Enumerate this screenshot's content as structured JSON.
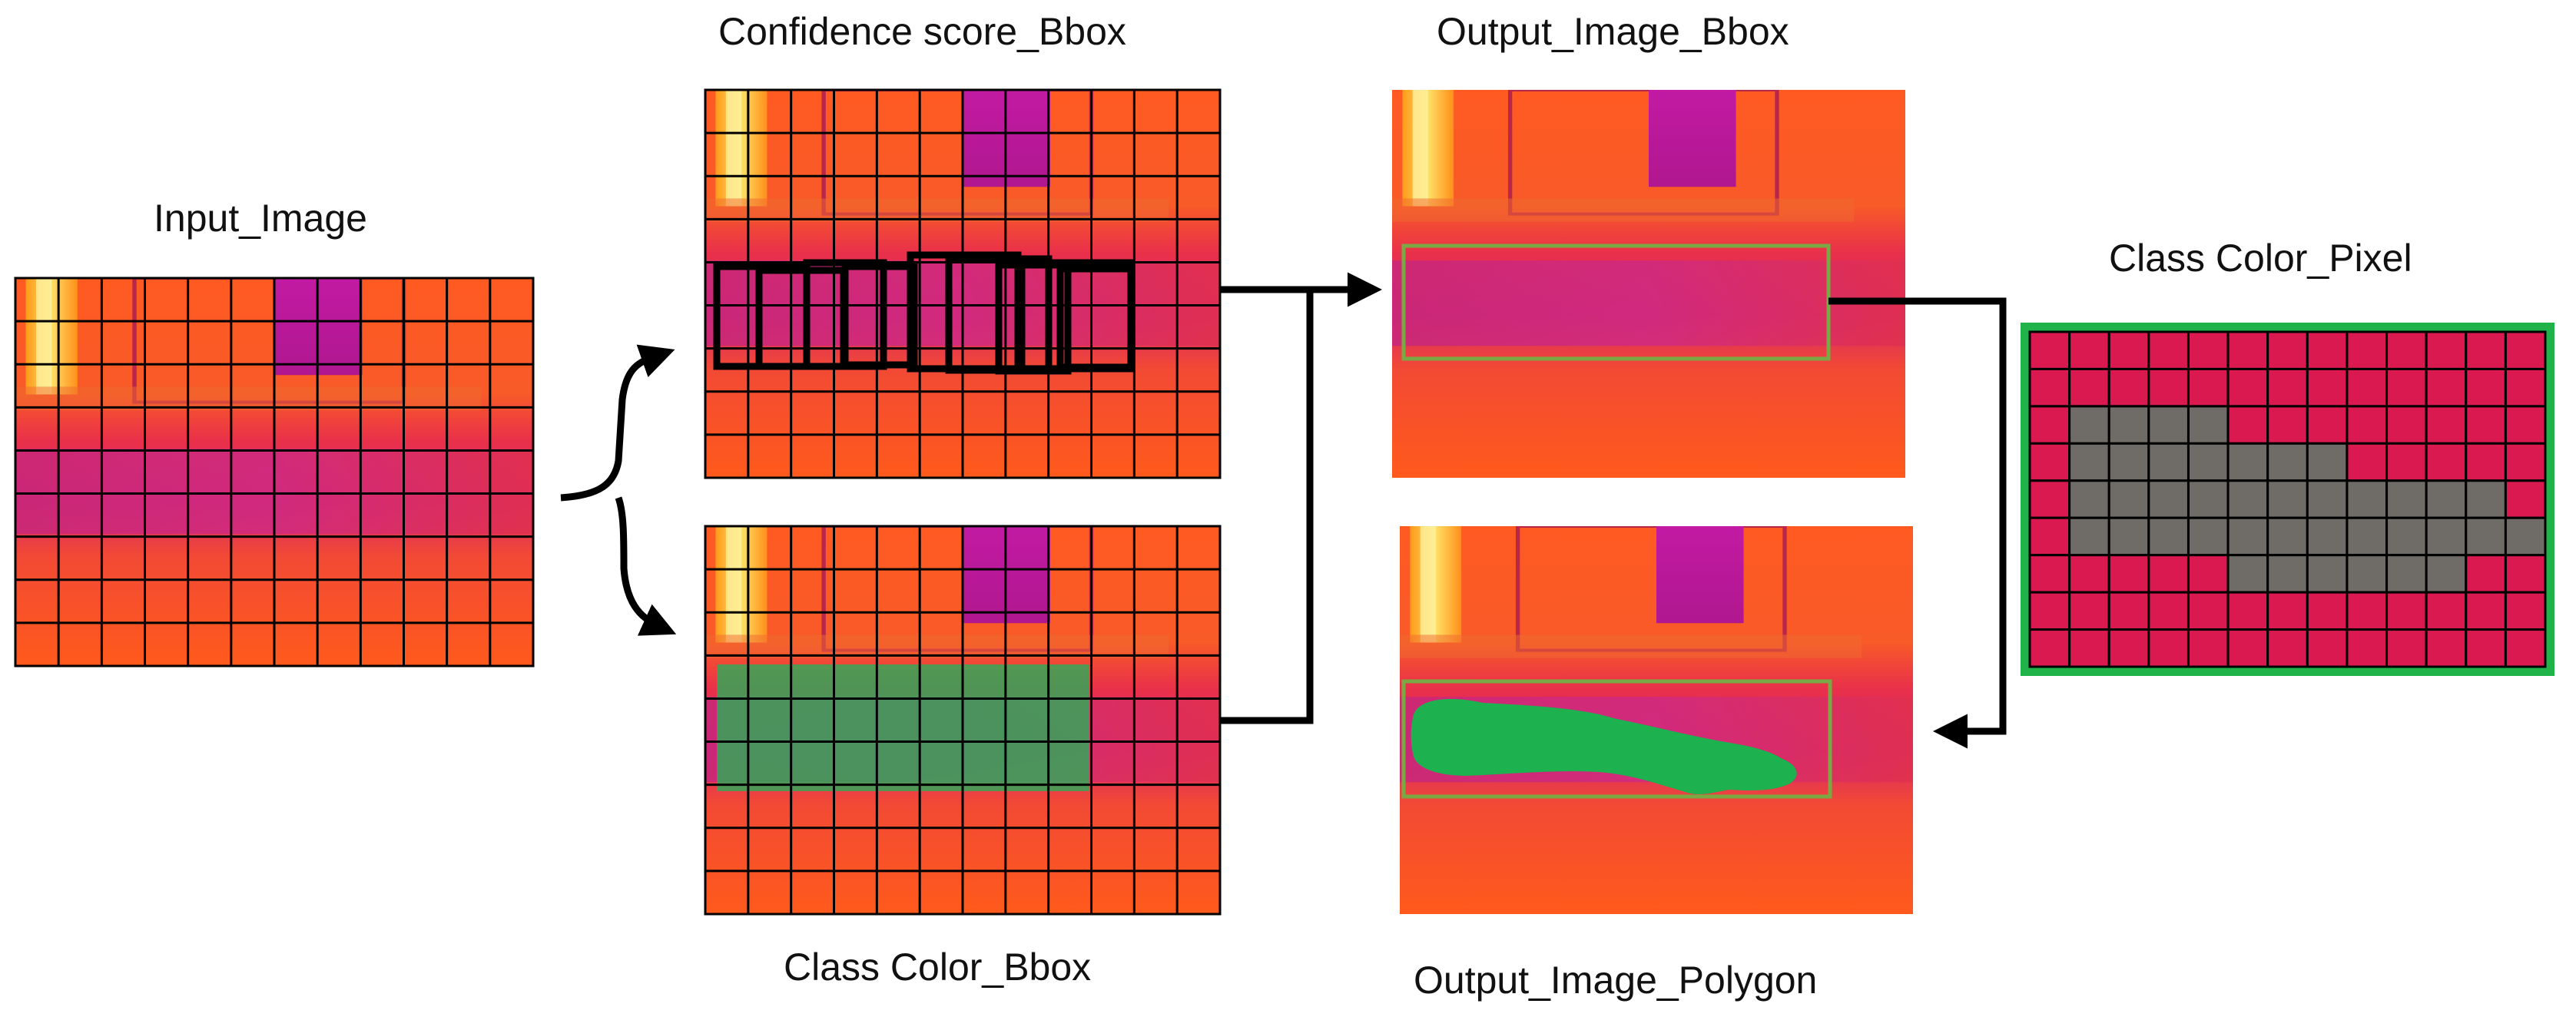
{
  "labels": {
    "input": "Input_Image",
    "confidence": "Confidence score_Bbox",
    "class_bbox": "Class Color_Bbox",
    "output_bbox": "Output_Image_Bbox",
    "output_polygon": "Output_Image_Polygon",
    "class_pixel": "Class Color_Pixel"
  },
  "colors": {
    "grid_line": "#000000",
    "class_green": "#2eaa58",
    "mask_green": "#1db14f",
    "pixel_red": "#d9194f",
    "pixel_gray": "#6f6b66",
    "frame_green": "#1fb34a",
    "bbox_outline": "#7aa843"
  },
  "pixel_grid": {
    "cols": 13,
    "rows": 9,
    "gray_cells": [
      [
        1,
        2
      ],
      [
        2,
        2
      ],
      [
        3,
        2
      ],
      [
        4,
        2
      ],
      [
        1,
        3
      ],
      [
        2,
        3
      ],
      [
        3,
        3
      ],
      [
        4,
        3
      ],
      [
        5,
        3
      ],
      [
        6,
        3
      ],
      [
        7,
        3
      ],
      [
        1,
        4
      ],
      [
        2,
        4
      ],
      [
        3,
        4
      ],
      [
        4,
        4
      ],
      [
        5,
        4
      ],
      [
        6,
        4
      ],
      [
        7,
        4
      ],
      [
        8,
        4
      ],
      [
        9,
        4
      ],
      [
        10,
        4
      ],
      [
        11,
        4
      ],
      [
        1,
        5
      ],
      [
        2,
        5
      ],
      [
        3,
        5
      ],
      [
        4,
        5
      ],
      [
        5,
        5
      ],
      [
        6,
        5
      ],
      [
        7,
        5
      ],
      [
        8,
        5
      ],
      [
        9,
        5
      ],
      [
        10,
        5
      ],
      [
        11,
        5
      ],
      [
        12,
        5
      ],
      [
        5,
        6
      ],
      [
        6,
        6
      ],
      [
        7,
        6
      ],
      [
        8,
        6
      ],
      [
        9,
        6
      ],
      [
        10,
        6
      ]
    ]
  }
}
